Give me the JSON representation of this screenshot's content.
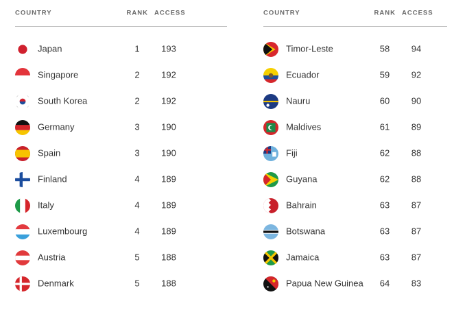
{
  "tables": [
    {
      "header": [
        "COUNTRY",
        "RANK",
        "ACCESS"
      ],
      "rows": [
        [
          "Japan",
          1,
          193
        ],
        [
          "Singapore",
          2,
          192
        ],
        [
          "South Korea",
          2,
          192
        ],
        [
          "Germany",
          3,
          190
        ],
        [
          "Spain",
          3,
          190
        ],
        [
          "Finland",
          4,
          189
        ],
        [
          "Italy",
          4,
          189
        ],
        [
          "Luxembourg",
          4,
          189
        ],
        [
          "Austria",
          5,
          188
        ],
        [
          "Denmark",
          5,
          188
        ]
      ]
    },
    {
      "header": [
        "COUNTRY",
        "RANK",
        "ACCESS"
      ],
      "rows": [
        [
          "Timor-Leste",
          58,
          94
        ],
        [
          "Ecuador",
          59,
          92
        ],
        [
          "Nauru",
          60,
          90
        ],
        [
          "Maldives",
          61,
          89
        ],
        [
          "Fiji",
          62,
          88
        ],
        [
          "Guyana",
          62,
          88
        ],
        [
          "Bahrain",
          63,
          87
        ],
        [
          "Botswana",
          63,
          87
        ],
        [
          "Jamaica",
          63,
          87
        ],
        [
          "Papua New Guinea",
          64,
          83
        ]
      ]
    }
  ]
}
